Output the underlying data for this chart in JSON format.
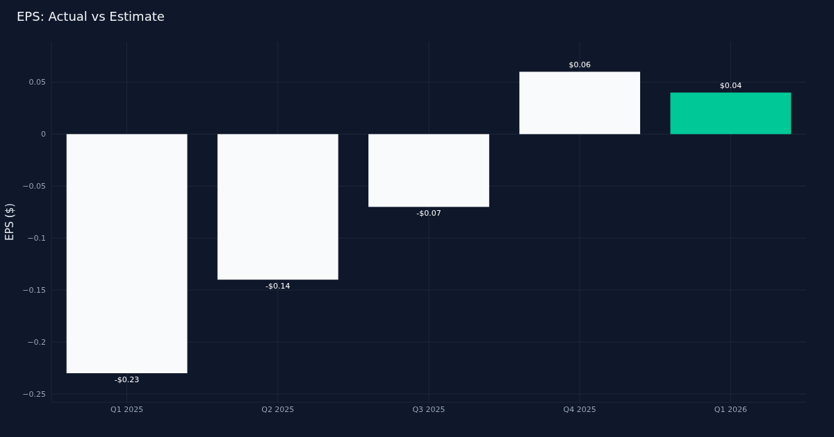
{
  "chart_data": {
    "type": "bar",
    "title": "EPS: Actual vs Estimate",
    "ylabel": "EPS ($)",
    "categories": [
      "Q1 2025",
      "Q2 2025",
      "Q3 2025",
      "Q4 2025",
      "Q1 2026"
    ],
    "values": [
      -0.23,
      -0.14,
      -0.07,
      0.06,
      0.04
    ],
    "colors": [
      "#f8fafc",
      "#f8fafc",
      "#f8fafc",
      "#f8fafc",
      "#00c896"
    ],
    "value_labels": [
      "-$0.23",
      "-$0.14",
      "-$0.07",
      "$0.06",
      "$0.04"
    ],
    "ylim": [
      -0.258,
      0.089
    ],
    "yticks": [
      {
        "value": -0.25,
        "label": "−0.25"
      },
      {
        "value": -0.2,
        "label": "−0.2"
      },
      {
        "value": -0.15,
        "label": "−0.15"
      },
      {
        "value": -0.1,
        "label": "−0.1"
      },
      {
        "value": -0.05,
        "label": "−0.05"
      },
      0,
      0.05
    ],
    "grid": true
  }
}
